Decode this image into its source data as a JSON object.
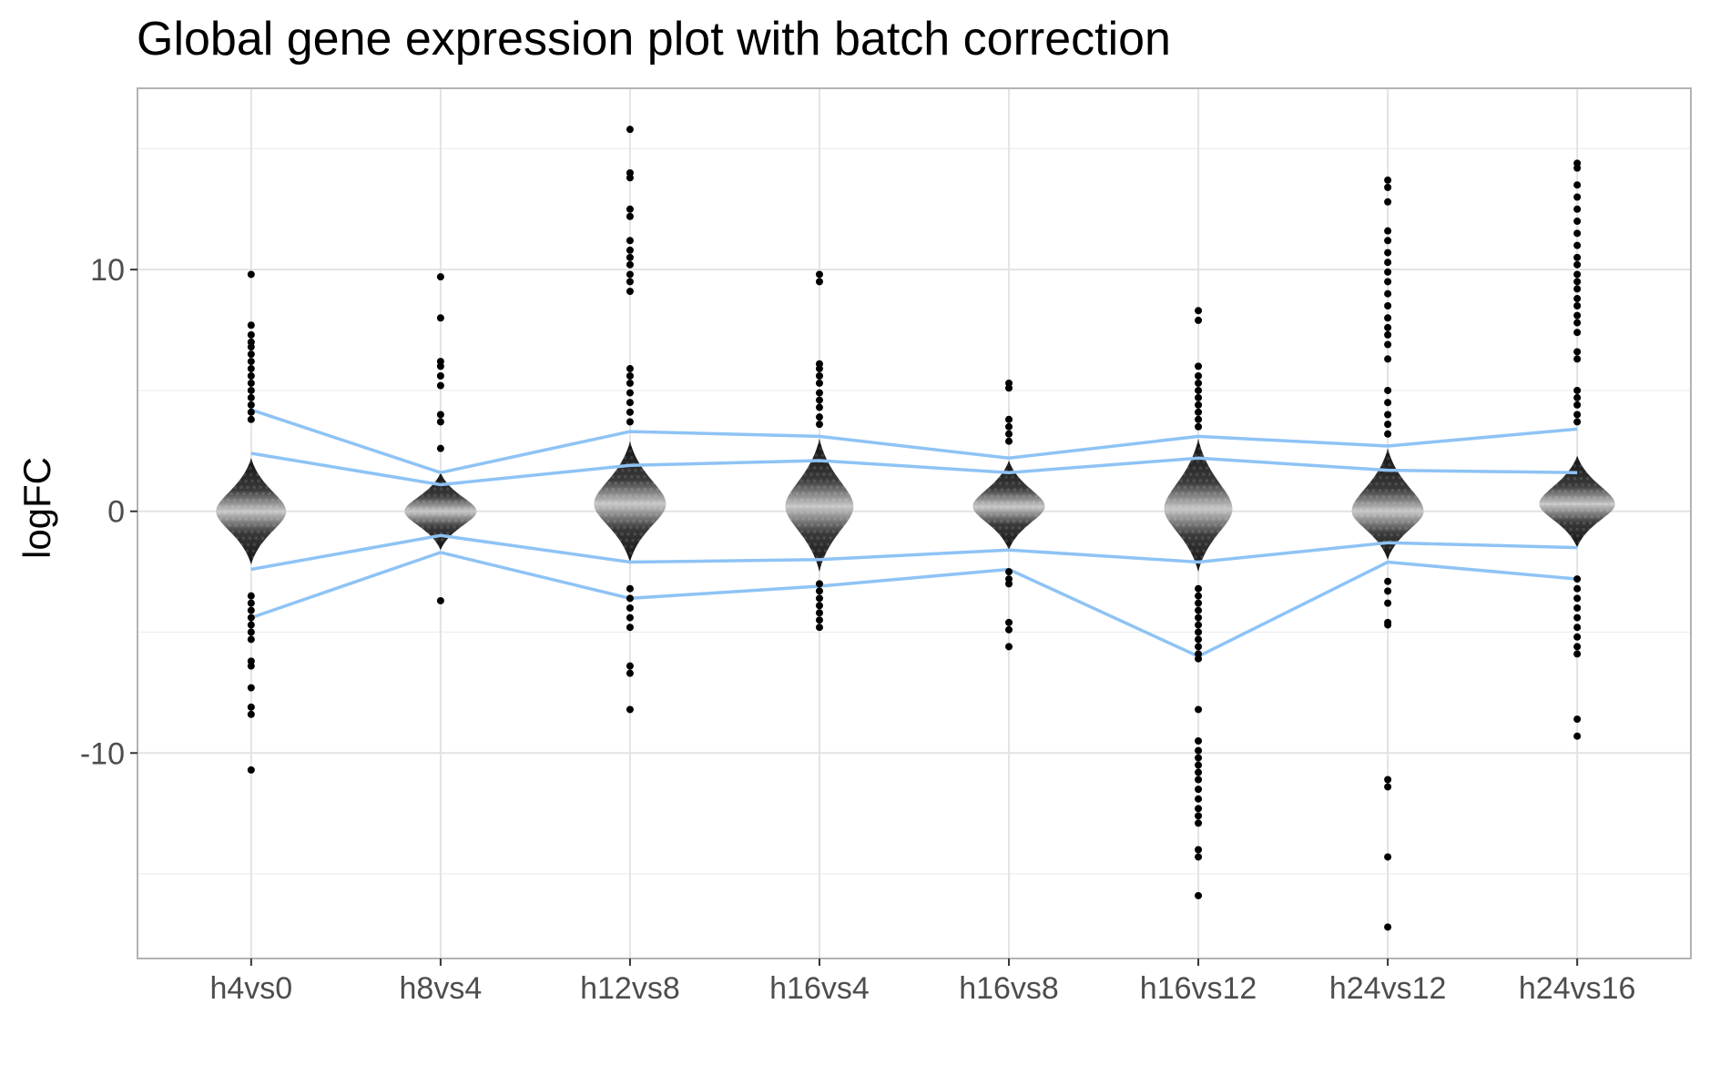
{
  "chart_data": {
    "type": "beeswarm",
    "title": "Global gene expression plot with batch correction",
    "xlabel": "",
    "ylabel": "logFC",
    "categories": [
      "h4vs0",
      "h8vs4",
      "h12vs8",
      "h16vs4",
      "h16vs8",
      "h16vs12",
      "h24vs12",
      "h24vs16"
    ],
    "y_ticks": [
      10,
      0,
      -10
    ],
    "y_tick_labels": [
      "10",
      "0",
      "-10"
    ],
    "ylim": [
      -18.5,
      17.5
    ],
    "grid": true,
    "colors": {
      "points": "#000000",
      "center_fill": "#c8c8c8",
      "lines": "#8ec3f5",
      "panel_border": "#b3b3b3",
      "grid": "#e6e6e6"
    },
    "swarm_core": [
      {
        "category": "h4vs0",
        "lo": -2.2,
        "hi": 2.2,
        "halfwidth": 0.37,
        "center": 0.0
      },
      {
        "category": "h8vs4",
        "lo": -1.6,
        "hi": 1.6,
        "halfwidth": 0.38,
        "center": 0.0
      },
      {
        "category": "h12vs8",
        "lo": -2.1,
        "hi": 2.9,
        "halfwidth": 0.38,
        "center": 0.3
      },
      {
        "category": "h16vs4",
        "lo": -2.5,
        "hi": 3.0,
        "halfwidth": 0.36,
        "center": 0.2
      },
      {
        "category": "h16vs8",
        "lo": -1.6,
        "hi": 2.1,
        "halfwidth": 0.38,
        "center": 0.2
      },
      {
        "category": "h16vs12",
        "lo": -2.5,
        "hi": 3.0,
        "halfwidth": 0.36,
        "center": 0.1
      },
      {
        "category": "h24vs12",
        "lo": -2.0,
        "hi": 2.6,
        "halfwidth": 0.38,
        "center": 0.0
      },
      {
        "category": "h24vs16",
        "lo": -1.5,
        "hi": 2.3,
        "halfwidth": 0.4,
        "center": 0.3
      }
    ],
    "outliers": [
      {
        "category": "h4vs0",
        "values": [
          9.8,
          7.7,
          7.3,
          7.0,
          6.8,
          6.5,
          6.2,
          5.9,
          5.6,
          5.3,
          5.0,
          4.7,
          4.4,
          4.1,
          3.8,
          -3.5,
          -3.8,
          -4.1,
          -4.4,
          -4.7,
          -5.0,
          -5.3,
          -6.2,
          -6.4,
          -7.3,
          -8.1,
          -8.4,
          -10.7
        ]
      },
      {
        "category": "h8vs4",
        "values": [
          9.7,
          8.0,
          6.2,
          6.0,
          5.6,
          5.2,
          4.0,
          3.7,
          2.6,
          -3.7
        ]
      },
      {
        "category": "h12vs8",
        "values": [
          15.8,
          14.0,
          13.8,
          12.5,
          12.2,
          11.2,
          10.8,
          10.5,
          10.2,
          9.8,
          9.5,
          9.1,
          5.9,
          5.6,
          5.3,
          4.9,
          4.5,
          4.1,
          3.7,
          -3.2,
          -3.6,
          -4.0,
          -4.4,
          -4.8,
          -6.4,
          -6.7,
          -8.2
        ]
      },
      {
        "category": "h16vs4",
        "values": [
          9.8,
          9.5,
          6.1,
          5.9,
          5.6,
          5.3,
          4.9,
          4.6,
          4.3,
          3.9,
          3.6,
          -3.0,
          -3.3,
          -3.6,
          -3.9,
          -4.2,
          -4.5,
          -4.8
        ]
      },
      {
        "category": "h16vs8",
        "values": [
          5.3,
          5.1,
          3.8,
          3.5,
          3.2,
          2.9,
          -2.5,
          -2.8,
          -3.0,
          -4.6,
          -4.9,
          -5.6
        ]
      },
      {
        "category": "h16vs12",
        "values": [
          8.3,
          7.9,
          6.0,
          5.6,
          5.3,
          5.0,
          4.7,
          4.4,
          4.1,
          3.8,
          3.5,
          -3.2,
          -3.5,
          -3.8,
          -4.1,
          -4.4,
          -4.7,
          -5.0,
          -5.3,
          -5.6,
          -5.9,
          -6.1,
          -8.2,
          -9.5,
          -9.9,
          -10.2,
          -10.5,
          -10.8,
          -11.1,
          -11.5,
          -11.9,
          -12.3,
          -12.6,
          -12.9,
          -14.0,
          -14.3,
          -15.9
        ]
      },
      {
        "category": "h24vs12",
        "values": [
          13.7,
          13.4,
          12.8,
          11.6,
          11.2,
          10.7,
          10.3,
          9.9,
          9.5,
          9.0,
          8.5,
          8.0,
          7.6,
          7.3,
          6.9,
          6.3,
          5.0,
          4.5,
          4.0,
          3.6,
          3.2,
          -2.9,
          -3.3,
          -3.8,
          -4.6,
          -4.7,
          -11.1,
          -11.4,
          -14.3,
          -17.2
        ]
      },
      {
        "category": "h24vs16",
        "values": [
          14.4,
          14.2,
          13.5,
          13.0,
          12.5,
          12.0,
          11.5,
          11.0,
          10.5,
          10.2,
          9.8,
          9.5,
          9.2,
          8.8,
          8.5,
          8.1,
          7.8,
          7.4,
          6.6,
          6.3,
          5.0,
          4.7,
          4.4,
          4.0,
          3.7,
          -2.8,
          -3.2,
          -3.6,
          -4.0,
          -4.4,
          -4.8,
          -5.2,
          -5.6,
          -5.9,
          -8.6,
          -9.3
        ]
      }
    ],
    "series": [
      {
        "values": [
          4.2,
          1.6,
          3.3,
          3.1,
          2.2,
          3.1,
          2.7,
          3.4
        ]
      },
      {
        "values": [
          2.4,
          1.1,
          1.9,
          2.1,
          1.6,
          2.2,
          1.7,
          1.6
        ]
      },
      {
        "values": [
          -2.4,
          -1.0,
          -2.1,
          -2.0,
          -1.6,
          -2.1,
          -1.3,
          -1.5
        ]
      },
      {
        "values": [
          -4.4,
          -1.7,
          -3.6,
          -3.1,
          -2.4,
          -6.0,
          -2.1,
          -2.8
        ]
      }
    ]
  }
}
